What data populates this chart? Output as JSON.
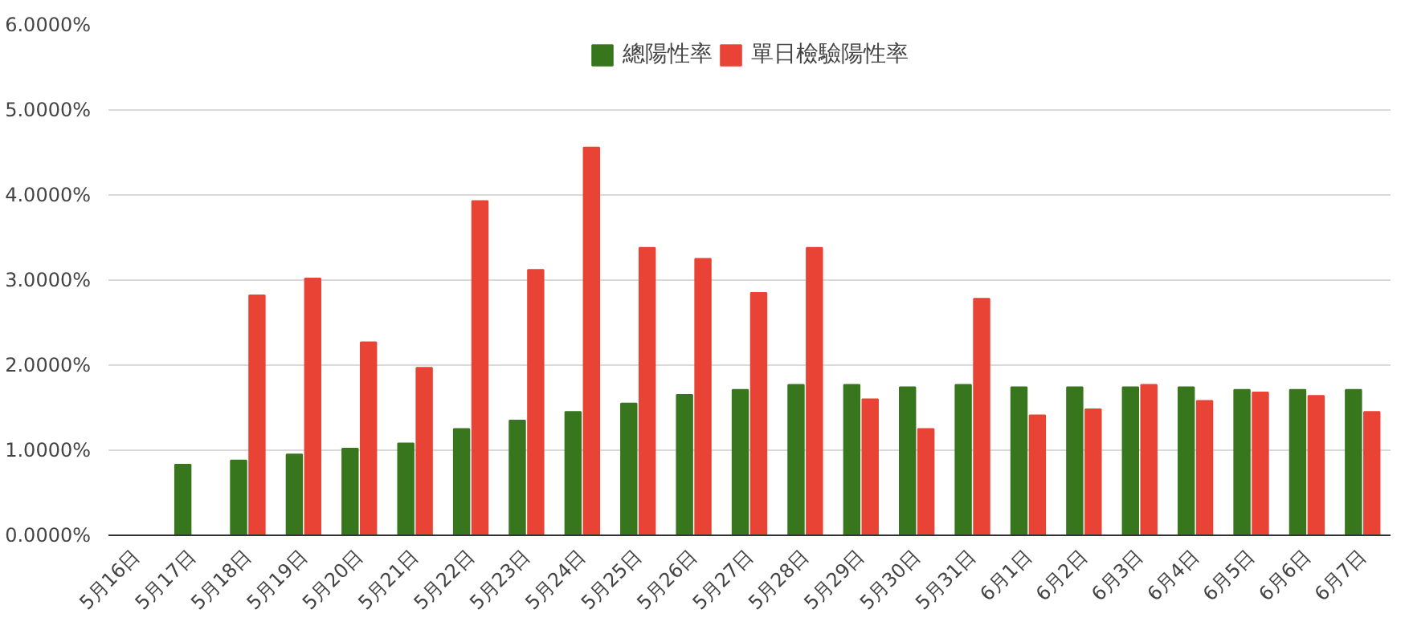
{
  "chart_data": {
    "type": "bar",
    "categories": [
      "5月16日",
      "5月17日",
      "5月18日",
      "5月19日",
      "5月20日",
      "5月21日",
      "5月22日",
      "5月23日",
      "5月24日",
      "5月25日",
      "5月26日",
      "5月27日",
      "5月28日",
      "5月29日",
      "5月30日",
      "5月31日",
      "6月1日",
      "6月2日",
      "6月3日",
      "6月4日",
      "6月5日",
      "6月6日",
      "6月7日"
    ],
    "series": [
      {
        "name": "總陽性率",
        "color": "#38761d",
        "values": [
          null,
          0.83,
          0.88,
          0.95,
          1.02,
          1.08,
          1.25,
          1.35,
          1.45,
          1.55,
          1.65,
          1.71,
          1.77,
          1.77,
          1.74,
          1.77,
          1.74,
          1.74,
          1.74,
          1.74,
          1.71,
          1.71,
          1.71
        ]
      },
      {
        "name": "單日檢驗陽性率",
        "color": "#e84335",
        "values": [
          null,
          null,
          2.82,
          3.02,
          2.27,
          1.97,
          3.93,
          3.12,
          4.56,
          3.38,
          3.25,
          2.85,
          3.38,
          1.6,
          1.25,
          2.78,
          1.41,
          1.48,
          1.77,
          1.58,
          1.68,
          1.64,
          1.45
        ]
      }
    ],
    "ylim": [
      0,
      6
    ],
    "yticks": [
      {
        "value": 0,
        "label": "0.0000%"
      },
      {
        "value": 1,
        "label": "1.0000%"
      },
      {
        "value": 2,
        "label": "2.0000%"
      },
      {
        "value": 3,
        "label": "3.0000%"
      },
      {
        "value": 4,
        "label": "4.0000%"
      },
      {
        "value": 5,
        "label": "5.0000%"
      },
      {
        "value": 6,
        "label": "6.0000%"
      }
    ],
    "grid": "y",
    "legend": "top"
  }
}
